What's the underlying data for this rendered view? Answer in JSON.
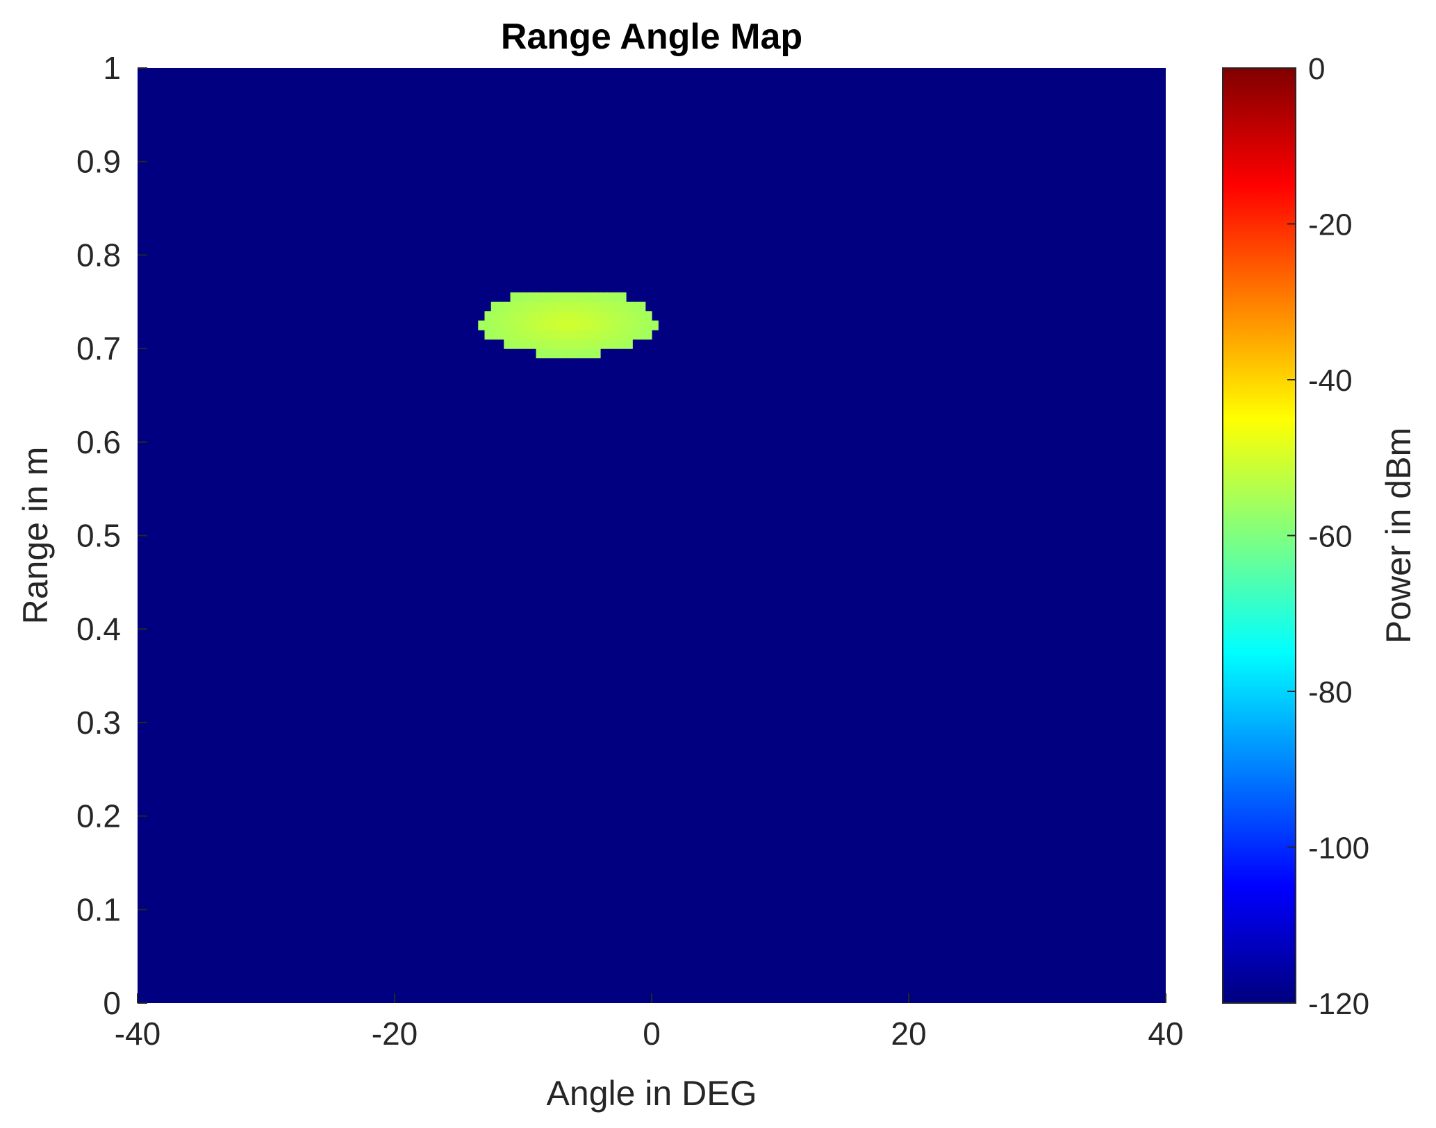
{
  "chart_data": {
    "type": "heatmap",
    "title": "Range Angle Map",
    "xlabel": "Angle in DEG",
    "ylabel": "Range in m",
    "xlim": [
      -40,
      40
    ],
    "ylim": [
      0,
      1
    ],
    "xticks": [
      -40,
      -20,
      0,
      20,
      40
    ],
    "yticks": [
      0,
      0.1,
      0.2,
      0.3,
      0.4,
      0.5,
      0.6,
      0.7,
      0.8,
      0.9,
      1
    ],
    "background_value": -120,
    "hotspot": {
      "center_angle": -6.5,
      "center_range": 0.728,
      "half_width_angle": 6.8,
      "half_height_range": 0.036,
      "peak_value": -50,
      "edge_value": -56
    },
    "colorbar": {
      "label": "Power in dBm",
      "colormap": "jet",
      "limits": [
        -120,
        0
      ],
      "ticks": [
        0,
        -20,
        -40,
        -60,
        -80,
        -100,
        -120
      ]
    },
    "grid": false
  }
}
